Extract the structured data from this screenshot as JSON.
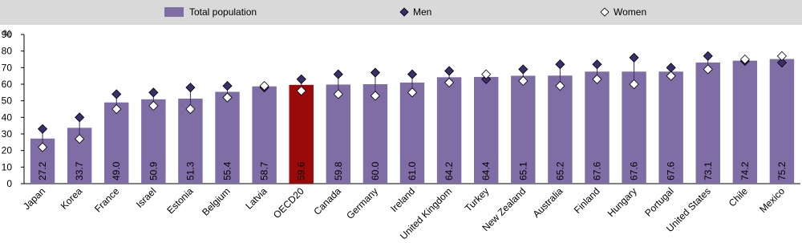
{
  "chart_data": {
    "type": "bar",
    "y_label": "%",
    "categories": [
      "Japan",
      "Korea",
      "France",
      "Israel",
      "Estonia",
      "Belgium",
      "Latvia",
      "OECD20",
      "Canada",
      "Germany",
      "Ireland",
      "United Kingdom",
      "Turkey",
      "New Zealand",
      "Australia",
      "Finland",
      "Hungary",
      "Portugal",
      "United States",
      "Chile",
      "Mexico"
    ],
    "series": [
      {
        "name": "Total population",
        "color": "#7f6ea6",
        "colors": [
          "#7f6ea6",
          "#7f6ea6",
          "#7f6ea6",
          "#7f6ea6",
          "#7f6ea6",
          "#7f6ea6",
          "#7f6ea6",
          "#9b0a0a",
          "#7f6ea6",
          "#7f6ea6",
          "#7f6ea6",
          "#7f6ea6",
          "#7f6ea6",
          "#7f6ea6",
          "#7f6ea6",
          "#7f6ea6",
          "#7f6ea6",
          "#7f6ea6",
          "#7f6ea6",
          "#7f6ea6",
          "#7f6ea6"
        ],
        "values": [
          27.2,
          33.7,
          49.0,
          50.9,
          51.3,
          55.4,
          58.7,
          59.6,
          59.8,
          60.0,
          61.0,
          64.2,
          64.4,
          65.1,
          65.2,
          67.6,
          67.6,
          67.6,
          73.1,
          74.2,
          75.2
        ],
        "value_labels": [
          "27.2",
          "33.7",
          "49.0",
          "50.9",
          "51.3",
          "55.4",
          "58.7",
          "59.6",
          "59.8",
          "60.0",
          "61.0",
          "64.2",
          "64.4",
          "65.1",
          "65.2",
          "67.6",
          "67.6",
          "67.6",
          "73.1",
          "74.2",
          "75.2"
        ]
      },
      {
        "name": "Men",
        "color": "#3b2e6b",
        "marker": "diamond",
        "values": [
          33,
          40,
          54,
          55,
          58,
          59,
          58,
          63,
          66,
          67,
          66,
          68,
          63,
          69,
          72,
          72,
          76,
          70,
          77,
          74,
          73
        ]
      },
      {
        "name": "Women",
        "color": "#ffffff",
        "marker": "diamond",
        "values": [
          22,
          27,
          45,
          47,
          45,
          52,
          59,
          56,
          54,
          53,
          55,
          61,
          66,
          62,
          59,
          63,
          60,
          65,
          69,
          75,
          77
        ]
      }
    ],
    "ylim": [
      0,
      90
    ],
    "yticks": [
      0,
      10,
      20,
      30,
      40,
      50,
      60,
      70,
      80,
      90
    ],
    "grid": false
  }
}
